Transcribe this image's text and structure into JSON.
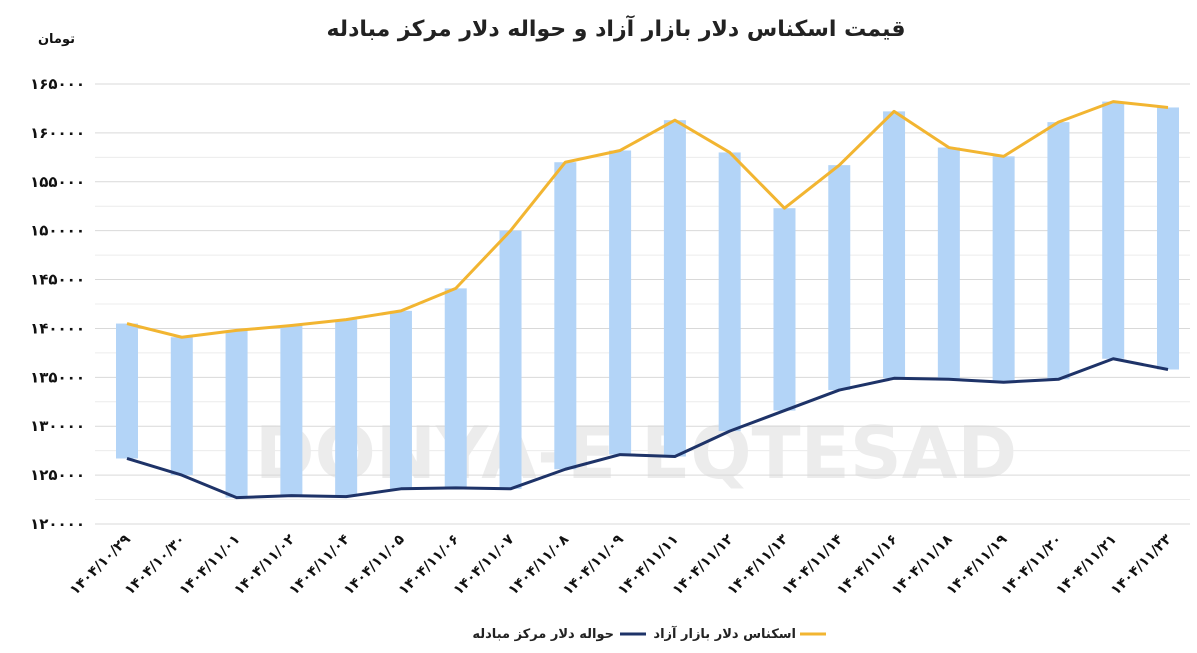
{
  "chart_data": {
    "type": "bar",
    "title": "قیمت اسکناس دلار بازار آزاد و حواله دلار مرکز مبادله",
    "unit_label": "تومان",
    "watermark": "DONYA-E EQTESAD",
    "ylim": [
      120000,
      165000
    ],
    "y_ticks": [
      "۱۲۰۰۰۰",
      "۱۲۵۰۰۰",
      "۱۳۰۰۰۰",
      "۱۳۵۰۰۰",
      "۱۴۰۰۰۰",
      "۱۴۵۰۰۰",
      "۱۵۰۰۰۰",
      "۱۵۵۰۰۰",
      "۱۶۰۰۰۰",
      "۱۶۵۰۰۰"
    ],
    "y_tick_values": [
      120000,
      125000,
      130000,
      135000,
      140000,
      145000,
      150000,
      155000,
      160000,
      165000
    ],
    "grid": true,
    "legend_position": "bottom",
    "categories": [
      "۱۴۰۴/۱۰/۲۹",
      "۱۴۰۴/۱۰/۳۰",
      "۱۴۰۴/۱۱/۰۱",
      "۱۴۰۴/۱۱/۰۲",
      "۱۴۰۴/۱۱/۰۴",
      "۱۴۰۴/۱۱/۰۵",
      "۱۴۰۴/۱۱/۰۶",
      "۱۴۰۴/۱۱/۰۷",
      "۱۴۰۴/۱۱/۰۸",
      "۱۴۰۴/۱۱/۰۹",
      "۱۴۰۴/۱۱/۱۱",
      "۱۴۰۴/۱۱/۱۲",
      "۱۴۰۴/۱۱/۱۳",
      "۱۴۰۴/۱۱/۱۴",
      "۱۴۰۴/۱۱/۱۶",
      "۱۴۰۴/۱۱/۱۸",
      "۱۴۰۴/۱۱/۱۹",
      "۱۴۰۴/۱۱/۲۰",
      "۱۴۰۴/۱۱/۲۱",
      "۱۴۰۴/۱۱/۲۳"
    ],
    "series": [
      {
        "name": "اسکناس دلار بازار آزاد",
        "color": "#f2b531",
        "values": [
          140500,
          139100,
          139800,
          140300,
          140900,
          141800,
          144100,
          150000,
          157000,
          158200,
          161300,
          158000,
          152300,
          156700,
          162200,
          158500,
          157600,
          161100,
          163200,
          162600
        ]
      },
      {
        "name": "حواله دلار مرکز مبادله",
        "color": "#1e3368",
        "values": [
          126700,
          125000,
          122700,
          122900,
          122800,
          123600,
          123700,
          123600,
          125600,
          127100,
          126900,
          129500,
          131600,
          133700,
          134900,
          134800,
          134500,
          134800,
          136900,
          135800
        ]
      }
    ],
    "range_bar_color": "#b3d4f7"
  }
}
